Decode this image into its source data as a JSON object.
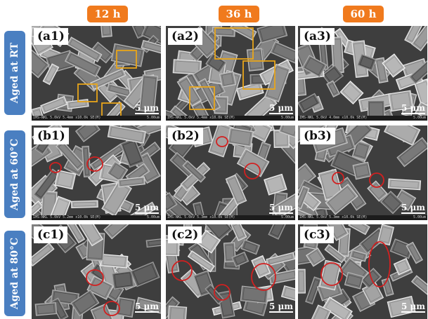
{
  "times": [
    "12 h",
    "36 h",
    "60 h"
  ],
  "rows": [
    "Aged at RT",
    "Aged at 60°C",
    "Aged at 80°C"
  ],
  "panels": [
    {
      "label": "(a1)",
      "scale": "5 μm",
      "info": "IMS-NKL 5.0kV 5.4mm x10.0k SE(M)",
      "info_right": "5.00um"
    },
    {
      "label": "(a2)",
      "scale": "5 μm",
      "info": "IMS-NKL 5.0kV 5.4mm x10.0k SE(M)",
      "info_right": "5.00um"
    },
    {
      "label": "(a3)",
      "scale": "5 μm",
      "info": "IMS-NKL 5.0kV 4.0mm x10.0k SE(M)",
      "info_right": "5.00um"
    },
    {
      "label": "(b1)",
      "scale": "5 μm",
      "info": "IMS-NKL 5.0kV 5.2mm x10.0k SE(M)",
      "info_right": "5.00um"
    },
    {
      "label": "(b2)",
      "scale": "5 μm",
      "info": "IMS-NKL 5.0kV 5.3mm x10.0k SE(M)",
      "info_right": "5.00um"
    },
    {
      "label": "(b3)",
      "scale": "5 μm",
      "info": "IMS-NKL 5.0kV 5.3mm x10.0k SE(M)",
      "info_right": "5.00um"
    },
    {
      "label": "(c1)",
      "scale": "5 μm",
      "info": "",
      "info_right": ""
    },
    {
      "label": "(c2)",
      "scale": "5 μm",
      "info": "",
      "info_right": ""
    },
    {
      "label": "(c3)",
      "scale": "5 μm",
      "info": "",
      "info_right": ""
    }
  ],
  "colors": {
    "time_tag": "#f07a1d",
    "row_tag": "#4a7fc1",
    "square_marker": "#e8a51a",
    "circle_marker": "#d22020"
  }
}
